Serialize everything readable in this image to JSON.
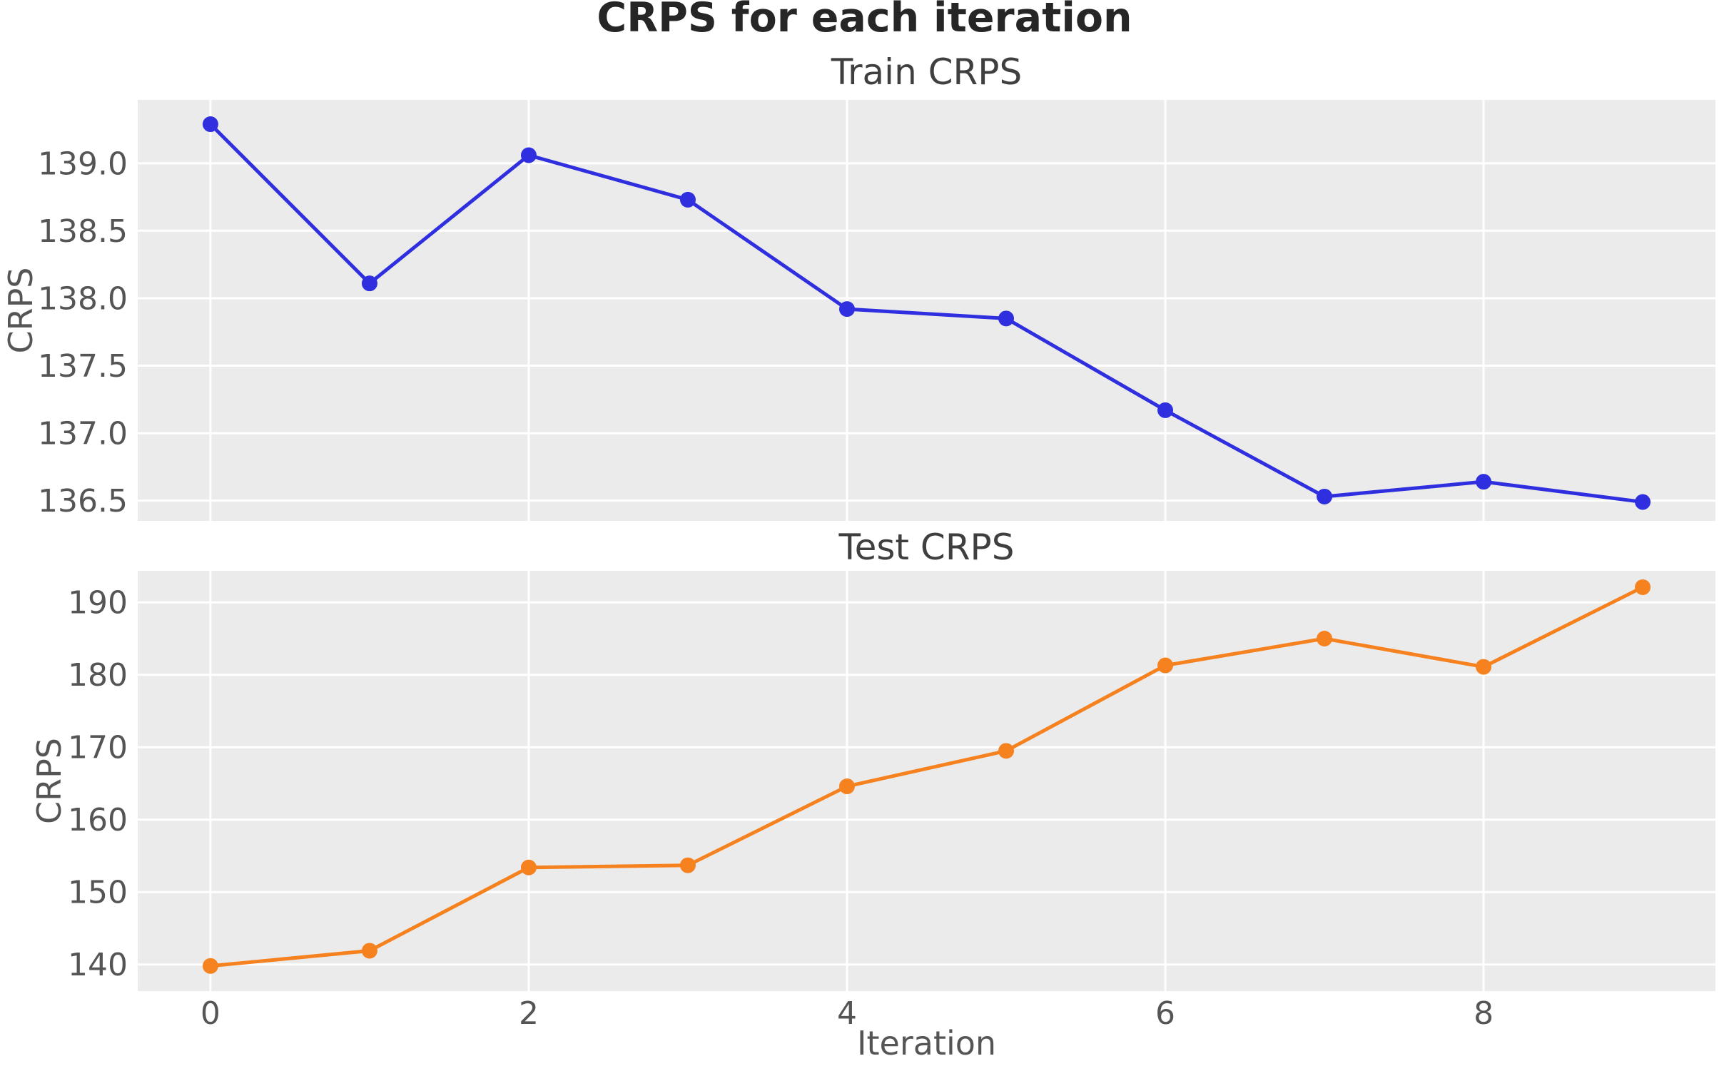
{
  "figure": {
    "title": "CRPS for each iteration",
    "xlabel": "Iteration",
    "xtick_labels": [
      "0",
      "2",
      "4",
      "6",
      "8"
    ],
    "xtick_values": [
      0,
      2,
      4,
      6,
      8
    ]
  },
  "style": {
    "page_background": "#ffffff",
    "panel_background": "#ebebeb",
    "grid_color": "#ffffff",
    "tick_label_color": "#555555",
    "axis_label_color": "#555555",
    "subplot_title_color": "#3f3f3f",
    "figure_title_color": "#262626",
    "train_color": "#2f2fe0",
    "test_color": "#f6821f"
  },
  "chart_data": [
    {
      "type": "line",
      "title": "Train CRPS",
      "ylabel": "CRPS",
      "legend": "none",
      "grid": "on",
      "xlim": [
        -0.457,
        9.457
      ],
      "ylim": [
        136.35,
        139.47
      ],
      "ytick_values": [
        136.5,
        137.0,
        137.5,
        138.0,
        138.5,
        139.0
      ],
      "ytick_labels": [
        "136.5",
        "137.0",
        "137.5",
        "138.0",
        "138.5",
        "139.0"
      ],
      "series": [
        {
          "name": "train",
          "color": "#2f2fe0",
          "marker": "circle",
          "x": [
            0,
            1,
            2,
            3,
            4,
            5,
            6,
            7,
            8,
            9
          ],
          "values": [
            139.29,
            138.11,
            139.06,
            138.73,
            137.92,
            137.85,
            137.17,
            136.53,
            136.64,
            136.49
          ]
        }
      ]
    },
    {
      "type": "line",
      "title": "Test CRPS",
      "ylabel": "CRPS",
      "legend": "none",
      "grid": "on",
      "xlim": [
        -0.457,
        9.457
      ],
      "ylim": [
        136.33,
        194.36
      ],
      "ytick_values": [
        140,
        150,
        160,
        170,
        180,
        190
      ],
      "ytick_labels": [
        "140",
        "150",
        "160",
        "170",
        "180",
        "190"
      ],
      "series": [
        {
          "name": "test",
          "color": "#f6821f",
          "marker": "circle",
          "x": [
            0,
            1,
            2,
            3,
            4,
            5,
            6,
            7,
            8,
            9
          ],
          "values": [
            139.8,
            141.9,
            153.4,
            153.7,
            164.6,
            169.5,
            181.3,
            185.0,
            181.1,
            192.1
          ]
        }
      ]
    }
  ]
}
